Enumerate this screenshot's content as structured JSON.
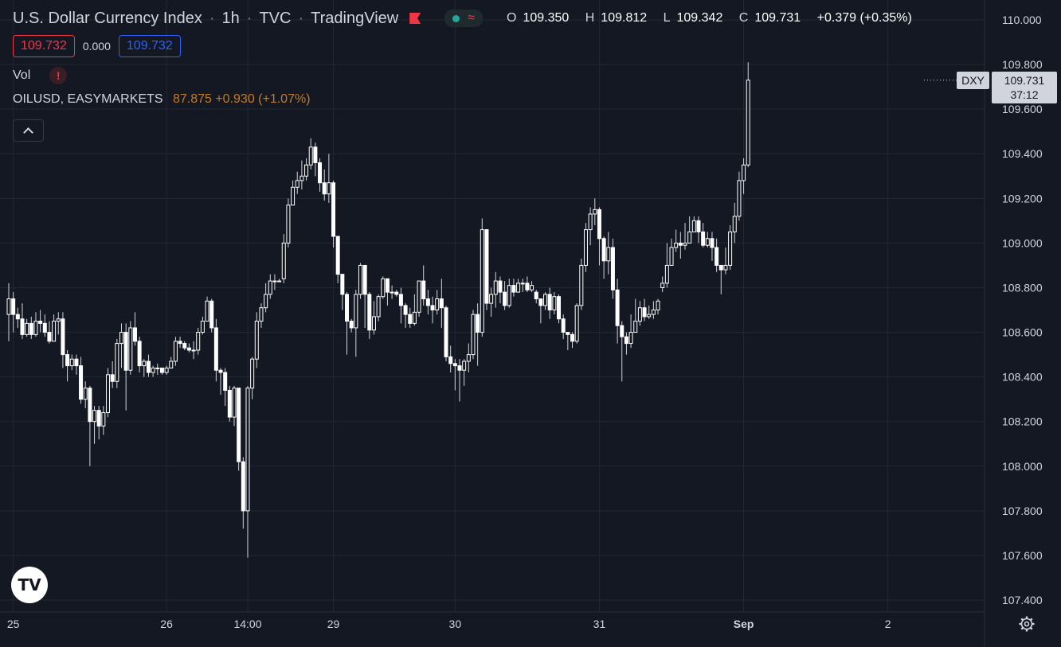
{
  "header": {
    "symbol": "U.S. Dollar Currency Index",
    "interval": "1h",
    "exchange": "TVC",
    "source": "TradingView",
    "ohlc": {
      "open_label": "O",
      "open": "109.350",
      "high_label": "H",
      "high": "109.812",
      "low_label": "L",
      "low": "109.342",
      "close_label": "C",
      "close": "109.731",
      "change": "+0.379 (+0.35%)"
    }
  },
  "trade": {
    "bid": "109.732",
    "spread": "0.000",
    "ask": "109.732"
  },
  "indicators": {
    "volume_label": "Vol",
    "warning_glyph": "!"
  },
  "compare": {
    "name": "OILUSD, EASYMARKETS",
    "value": "87.875 +0.930 (+1.07%)"
  },
  "price_scale": {
    "symbol_tag": "DXY",
    "last_price": "109.731",
    "countdown": "37:12"
  },
  "logo": {
    "glyph": "TV"
  },
  "icons": [
    "flag-icon",
    "dot-icon",
    "wave-icon",
    "warning-icon",
    "chevron-up-icon",
    "tradingview-logo",
    "gear-icon"
  ],
  "colors": {
    "background": "#141823",
    "grid": "#232733",
    "candle": "#ffffff",
    "text": "#d1d4dc",
    "bid": "#f23645",
    "ask": "#2962ff",
    "compare": "#c27a2c"
  },
  "chart_data": {
    "type": "candlestick",
    "title": "U.S. Dollar Currency Index · 1h · TVC",
    "xlabel": "",
    "ylabel": "",
    "ylim": [
      107.35,
      110.05
    ],
    "y_ticks": [
      "110.000",
      "109.800",
      "109.600",
      "109.400",
      "109.200",
      "109.000",
      "108.800",
      "108.600",
      "108.400",
      "108.200",
      "108.000",
      "107.800",
      "107.600",
      "107.400"
    ],
    "x_ticks": [
      "25",
      "26",
      "14:00",
      "29",
      "30",
      "31",
      "Sep",
      "2"
    ],
    "x_tick_bar_index": [
      1,
      35,
      53,
      72,
      99,
      131,
      163,
      195
    ],
    "grid": true,
    "candles": [
      [
        108.68,
        108.75,
        108.82,
        108.56
      ],
      [
        108.75,
        108.68,
        108.78,
        108.6
      ],
      [
        108.68,
        108.66,
        108.71,
        108.62
      ],
      [
        108.66,
        108.59,
        108.73,
        108.57
      ],
      [
        108.59,
        108.64,
        108.66,
        108.58
      ],
      [
        108.64,
        108.59,
        108.67,
        108.57
      ],
      [
        108.59,
        108.65,
        108.69,
        108.58
      ],
      [
        108.65,
        108.64,
        108.7,
        108.6
      ],
      [
        108.64,
        108.6,
        108.68,
        108.58
      ],
      [
        108.6,
        108.56,
        108.65,
        108.55
      ],
      [
        108.56,
        108.65,
        108.68,
        108.6
      ],
      [
        108.65,
        108.66,
        108.69,
        108.59
      ],
      [
        108.66,
        108.5,
        108.69,
        108.44
      ],
      [
        108.5,
        108.45,
        108.52,
        108.38
      ],
      [
        108.45,
        108.48,
        108.5,
        108.43
      ],
      [
        108.48,
        108.45,
        108.5,
        108.41
      ],
      [
        108.45,
        108.3,
        108.49,
        108.28
      ],
      [
        108.3,
        108.35,
        108.38,
        108.26
      ],
      [
        108.35,
        108.2,
        108.36,
        108.0
      ],
      [
        108.2,
        108.25,
        108.27,
        108.1
      ],
      [
        108.25,
        108.18,
        108.27,
        108.12
      ],
      [
        108.18,
        108.24,
        108.27,
        108.14
      ],
      [
        108.24,
        108.41,
        108.44,
        108.22
      ],
      [
        108.41,
        108.38,
        108.47,
        108.35
      ],
      [
        108.38,
        108.55,
        108.57,
        108.35
      ],
      [
        108.55,
        108.6,
        108.64,
        108.44
      ],
      [
        108.6,
        108.43,
        108.64,
        108.25
      ],
      [
        108.43,
        108.62,
        108.65,
        108.41
      ],
      [
        108.62,
        108.56,
        108.69,
        108.54
      ],
      [
        108.56,
        108.45,
        108.58,
        108.42
      ],
      [
        108.45,
        108.47,
        108.48,
        108.4
      ],
      [
        108.47,
        108.42,
        108.5,
        108.4
      ],
      [
        108.42,
        108.44,
        108.45,
        108.4
      ],
      [
        108.44,
        108.44,
        108.46,
        108.41
      ],
      [
        108.44,
        108.42,
        108.44,
        108.41
      ],
      [
        108.42,
        108.44,
        108.45,
        108.41
      ],
      [
        108.44,
        108.47,
        108.49,
        108.45
      ],
      [
        108.47,
        108.56,
        108.58,
        108.45
      ],
      [
        108.56,
        108.55,
        108.58,
        108.53
      ],
      [
        108.55,
        108.53,
        108.56,
        108.52
      ],
      [
        108.53,
        108.52,
        108.55,
        108.51
      ],
      [
        108.52,
        108.52,
        108.56,
        108.48
      ],
      [
        108.52,
        108.6,
        108.62,
        108.5
      ],
      [
        108.6,
        108.65,
        108.67,
        108.59
      ],
      [
        108.65,
        108.74,
        108.76,
        108.65
      ],
      [
        108.74,
        108.62,
        108.75,
        108.6
      ],
      [
        108.62,
        108.43,
        108.66,
        108.38
      ],
      [
        108.43,
        108.42,
        108.44,
        108.32
      ],
      [
        108.42,
        108.34,
        108.44,
        108.27
      ],
      [
        108.34,
        108.22,
        108.36,
        108.2
      ],
      [
        108.22,
        108.35,
        108.36,
        108.18
      ],
      [
        108.35,
        108.02,
        108.35,
        107.98
      ],
      [
        108.02,
        107.8,
        108.04,
        107.72
      ],
      [
        107.8,
        108.35,
        108.36,
        107.59
      ],
      [
        108.35,
        108.48,
        108.49,
        108.3
      ],
      [
        108.48,
        108.65,
        108.69,
        108.44
      ],
      [
        108.65,
        108.71,
        108.73,
        108.62
      ],
      [
        108.71,
        108.77,
        108.82,
        108.69
      ],
      [
        108.77,
        108.83,
        108.86,
        108.75
      ],
      [
        108.83,
        108.83,
        108.86,
        108.79
      ],
      [
        108.83,
        108.83,
        108.84,
        108.83
      ],
      [
        108.84,
        109.0,
        109.04,
        108.82
      ],
      [
        109.0,
        109.17,
        109.2,
        108.98
      ],
      [
        109.17,
        109.25,
        109.28,
        109.17
      ],
      [
        109.25,
        109.28,
        109.32,
        109.22
      ],
      [
        109.28,
        109.3,
        109.37,
        109.24
      ],
      [
        109.3,
        109.35,
        109.38,
        109.28
      ],
      [
        109.35,
        109.43,
        109.47,
        109.33
      ],
      [
        109.43,
        109.36,
        109.45,
        109.3
      ],
      [
        109.36,
        109.27,
        109.38,
        109.23
      ],
      [
        109.27,
        109.22,
        109.33,
        109.19
      ],
      [
        109.22,
        109.27,
        109.4,
        109.18
      ],
      [
        109.27,
        109.03,
        109.28,
        108.98
      ],
      [
        109.03,
        108.86,
        109.02,
        108.82
      ],
      [
        108.86,
        108.77,
        108.86,
        108.7
      ],
      [
        108.77,
        108.65,
        108.78,
        108.5
      ],
      [
        108.65,
        108.62,
        108.66,
        108.6
      ],
      [
        108.62,
        108.77,
        108.79,
        108.49
      ],
      [
        108.77,
        108.9,
        108.91,
        108.75
      ],
      [
        108.9,
        108.77,
        108.9,
        108.62
      ],
      [
        108.77,
        108.61,
        108.78,
        108.57
      ],
      [
        108.61,
        108.67,
        108.74,
        108.59
      ],
      [
        108.67,
        108.76,
        108.77,
        108.65
      ],
      [
        108.76,
        108.84,
        108.85,
        108.75
      ],
      [
        108.84,
        108.78,
        108.84,
        108.72
      ],
      [
        108.78,
        108.78,
        108.81,
        108.75
      ],
      [
        108.78,
        108.77,
        108.79,
        108.76
      ],
      [
        108.77,
        108.72,
        108.8,
        108.64
      ],
      [
        108.72,
        108.68,
        108.73,
        108.62
      ],
      [
        108.68,
        108.64,
        108.71,
        108.62
      ],
      [
        108.64,
        108.69,
        108.77,
        108.63
      ],
      [
        108.69,
        108.83,
        108.83,
        108.67
      ],
      [
        108.83,
        108.75,
        108.9,
        108.72
      ],
      [
        108.75,
        108.72,
        108.79,
        108.68
      ],
      [
        108.72,
        108.7,
        108.76,
        108.64
      ],
      [
        108.7,
        108.75,
        108.79,
        108.68
      ],
      [
        108.75,
        108.71,
        108.84,
        108.62
      ],
      [
        108.71,
        108.49,
        108.72,
        108.47
      ],
      [
        108.49,
        108.46,
        108.54,
        108.42
      ],
      [
        108.46,
        108.45,
        108.48,
        108.34
      ],
      [
        108.45,
        108.43,
        108.48,
        108.29
      ],
      [
        108.43,
        108.47,
        108.48,
        108.36
      ],
      [
        108.47,
        108.5,
        108.55,
        108.42
      ],
      [
        108.5,
        108.68,
        108.7,
        108.48
      ],
      [
        108.68,
        108.6,
        108.73,
        108.45
      ],
      [
        108.6,
        109.06,
        109.11,
        108.58
      ],
      [
        109.06,
        108.73,
        109.06,
        108.7
      ],
      [
        108.73,
        108.77,
        108.8,
        108.67
      ],
      [
        108.77,
        108.83,
        108.87,
        108.71
      ],
      [
        108.83,
        108.78,
        108.85,
        108.73
      ],
      [
        108.78,
        108.72,
        108.83,
        108.7
      ],
      [
        108.72,
        108.81,
        108.84,
        108.71
      ],
      [
        108.81,
        108.78,
        108.84,
        108.76
      ],
      [
        108.78,
        108.82,
        108.84,
        108.8
      ],
      [
        108.82,
        108.82,
        108.84,
        108.78
      ],
      [
        108.82,
        108.79,
        108.85,
        108.78
      ],
      [
        108.79,
        108.81,
        108.83,
        108.78
      ],
      [
        108.78,
        108.75,
        108.79,
        108.73
      ],
      [
        108.75,
        108.72,
        108.75,
        108.64
      ],
      [
        108.72,
        108.77,
        108.78,
        108.7
      ],
      [
        108.77,
        108.7,
        108.8,
        108.66
      ],
      [
        108.7,
        108.76,
        108.78,
        108.68
      ],
      [
        108.76,
        108.66,
        108.77,
        108.64
      ],
      [
        108.66,
        108.6,
        108.68,
        108.57
      ],
      [
        108.6,
        108.59,
        108.6,
        108.52
      ],
      [
        108.59,
        108.56,
        108.6,
        108.53
      ],
      [
        108.56,
        108.72,
        108.73,
        108.55
      ],
      [
        108.72,
        108.9,
        108.93,
        108.7
      ],
      [
        108.9,
        109.06,
        109.09,
        108.87
      ],
      [
        109.06,
        109.13,
        109.16,
        108.99
      ],
      [
        109.13,
        109.15,
        109.2,
        109.08
      ],
      [
        109.15,
        109.02,
        109.16,
        108.9
      ],
      [
        109.02,
        108.92,
        109.03,
        108.84
      ],
      [
        108.92,
        108.98,
        109.05,
        108.86
      ],
      [
        108.98,
        108.79,
        109.02,
        108.75
      ],
      [
        108.79,
        108.63,
        108.84,
        108.55
      ],
      [
        108.63,
        108.58,
        108.65,
        108.38
      ],
      [
        108.58,
        108.55,
        108.6,
        108.5
      ],
      [
        108.55,
        108.6,
        108.68,
        108.53
      ],
      [
        108.6,
        108.65,
        108.75,
        108.6
      ],
      [
        108.65,
        108.71,
        108.74,
        108.63
      ],
      [
        108.71,
        108.67,
        108.75,
        108.65
      ],
      [
        108.67,
        108.68,
        108.72,
        108.66
      ],
      [
        108.68,
        108.7,
        108.74,
        108.66
      ],
      [
        108.7,
        108.74,
        108.75,
        108.68
      ],
      [
        108.8,
        108.82,
        108.85,
        108.78
      ],
      [
        108.82,
        108.9,
        109.0,
        108.8
      ],
      [
        108.9,
        108.98,
        109.02,
        108.9
      ],
      [
        108.98,
        109.0,
        109.06,
        108.96
      ],
      [
        109.0,
        108.99,
        109.05,
        108.93
      ],
      [
        108.99,
        109.0,
        109.09,
        108.97
      ],
      [
        109.0,
        109.05,
        109.12,
        109.0
      ],
      [
        109.05,
        109.1,
        109.12,
        109.05
      ],
      [
        109.1,
        109.05,
        109.12,
        109.0
      ],
      [
        109.05,
        108.99,
        109.09,
        108.98
      ],
      [
        108.99,
        109.02,
        109.05,
        108.98
      ],
      [
        109.02,
        108.98,
        109.05,
        108.92
      ],
      [
        108.98,
        108.9,
        109.02,
        108.87
      ],
      [
        108.9,
        108.88,
        108.9,
        108.77
      ],
      [
        108.88,
        108.9,
        108.98,
        108.86
      ],
      [
        108.9,
        109.05,
        109.08,
        108.88
      ],
      [
        109.05,
        109.12,
        109.18,
        109.0
      ],
      [
        109.12,
        109.28,
        109.32,
        109.1
      ],
      [
        109.28,
        109.35,
        109.38,
        109.22
      ],
      [
        109.35,
        109.73,
        109.81,
        109.34
      ]
    ]
  }
}
